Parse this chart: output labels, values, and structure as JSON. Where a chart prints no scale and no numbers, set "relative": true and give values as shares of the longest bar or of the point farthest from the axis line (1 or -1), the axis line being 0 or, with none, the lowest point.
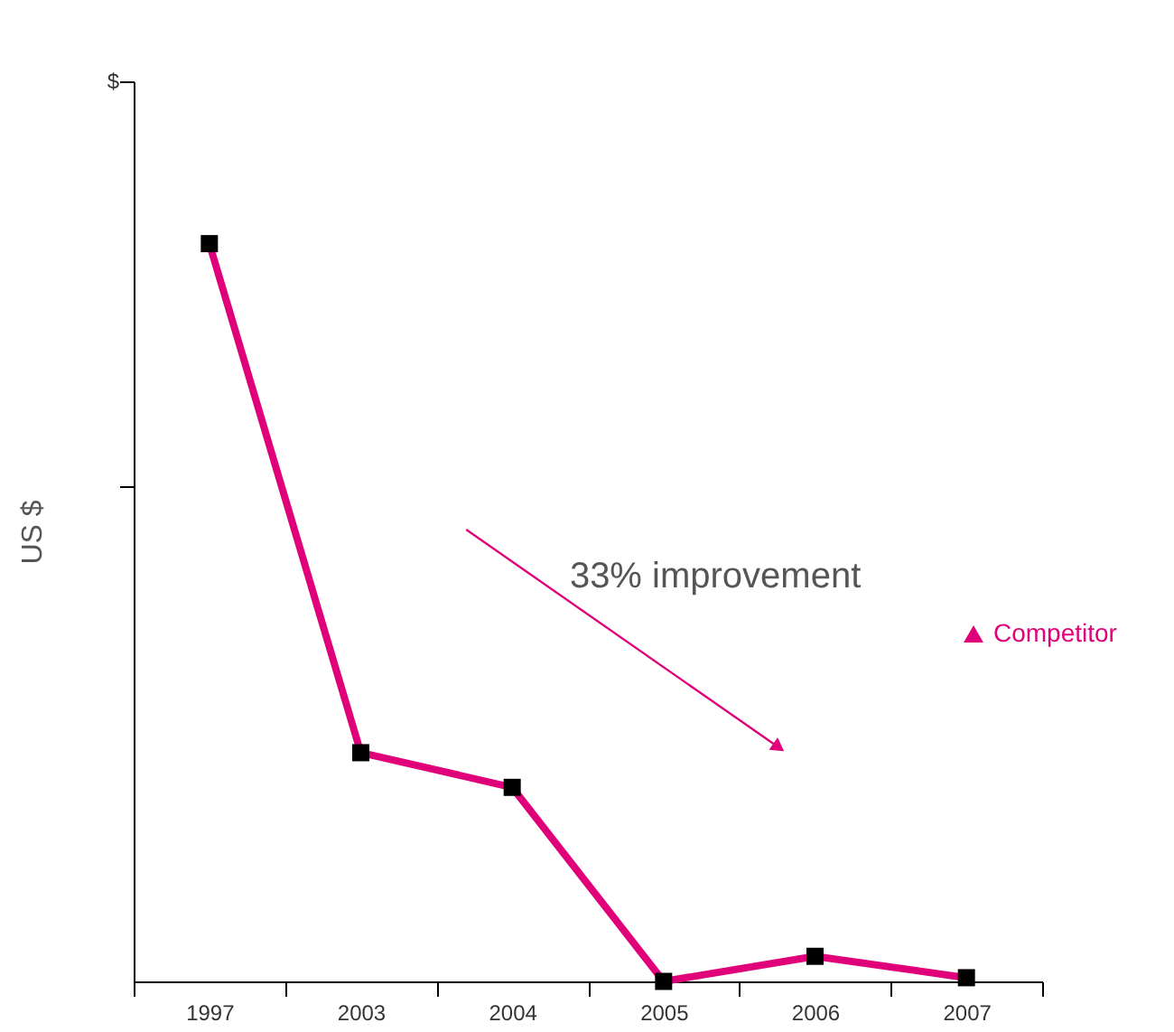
{
  "chart_data": {
    "type": "line",
    "relative": true,
    "ylabel": "US $",
    "categories": [
      "1997",
      "2003",
      "2004",
      "2005",
      "2006",
      "2007"
    ],
    "series": [
      {
        "name": "Competitor",
        "color": "#e0007a",
        "values": [
          1,
          0.31,
          0.263,
          0,
          0.034,
          0.005
        ]
      }
    ],
    "marker": "square",
    "line_style": "solid",
    "grid": false,
    "legend": "right",
    "annotations": [
      "$",
      "33% improvement"
    ]
  }
}
